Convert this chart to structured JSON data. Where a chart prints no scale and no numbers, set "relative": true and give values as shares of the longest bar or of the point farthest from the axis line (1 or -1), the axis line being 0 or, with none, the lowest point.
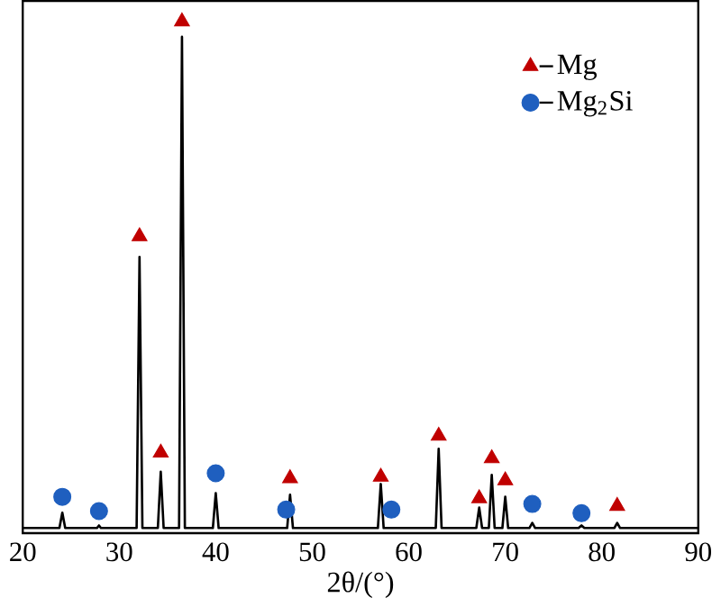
{
  "chart_data": {
    "type": "line",
    "relative": true,
    "xlabel": "2θ/(°)",
    "xlim": [
      20,
      90
    ],
    "xticks": [
      20,
      30,
      40,
      50,
      60,
      70,
      80,
      90
    ],
    "tick_labels": "x",
    "grid": false,
    "legend": "top right",
    "series": [
      {
        "color": "#000000",
        "marker": "none",
        "line_style": "solid",
        "x": [
          20,
          23.8,
          24.1,
          24.4,
          27.7,
          27.9,
          28.1,
          31.8,
          32.1,
          32.4,
          34.0,
          34.3,
          34.6,
          36.2,
          36.5,
          36.8,
          39.7,
          40.0,
          40.3,
          47.4,
          47.7,
          48.0,
          56.8,
          57.1,
          57.4,
          62.8,
          63.1,
          63.4,
          67.0,
          67.3,
          67.6,
          68.3,
          68.6,
          68.9,
          69.7,
          70.0,
          70.3,
          72.5,
          72.8,
          73.1,
          77.6,
          77.9,
          78.2,
          81.3,
          81.6,
          81.9,
          90
        ],
        "values": [
          0.01,
          0.01,
          0.04,
          0.01,
          0.01,
          0.015,
          0.01,
          0.01,
          0.54,
          0.01,
          0.01,
          0.12,
          0.01,
          0.01,
          0.97,
          0.01,
          0.01,
          0.078,
          0.01,
          0.01,
          0.075,
          0.01,
          0.01,
          0.096,
          0.01,
          0.01,
          0.165,
          0.01,
          0.01,
          0.05,
          0.01,
          0.01,
          0.114,
          0.01,
          0.01,
          0.071,
          0.01,
          0.01,
          0.02,
          0.01,
          0.01,
          0.015,
          0.01,
          0.01,
          0.02,
          0.01,
          0.01
        ]
      },
      {
        "type": "scatter",
        "name": "Mg",
        "color": "#c00000",
        "marker": "triangle",
        "x": [
          32.1,
          34.3,
          36.5,
          47.7,
          57.1,
          63.1,
          67.3,
          68.6,
          70.0,
          81.6
        ],
        "values": [
          0.58,
          0.157,
          1,
          0.107,
          0.11,
          0.19,
          0.068,
          0.146,
          0.103,
          0.053
        ]
      },
      {
        "type": "scatter",
        "name": "Mg$_{2}$Si",
        "color": "#1f5fbf",
        "marker": "circle",
        "x": [
          24.1,
          27.9,
          40.0,
          47.3,
          58.2,
          72.8,
          77.9
        ],
        "values": [
          0.071,
          0.043,
          0.117,
          0.046,
          0.046,
          0.057,
          0.039
        ]
      }
    ]
  }
}
